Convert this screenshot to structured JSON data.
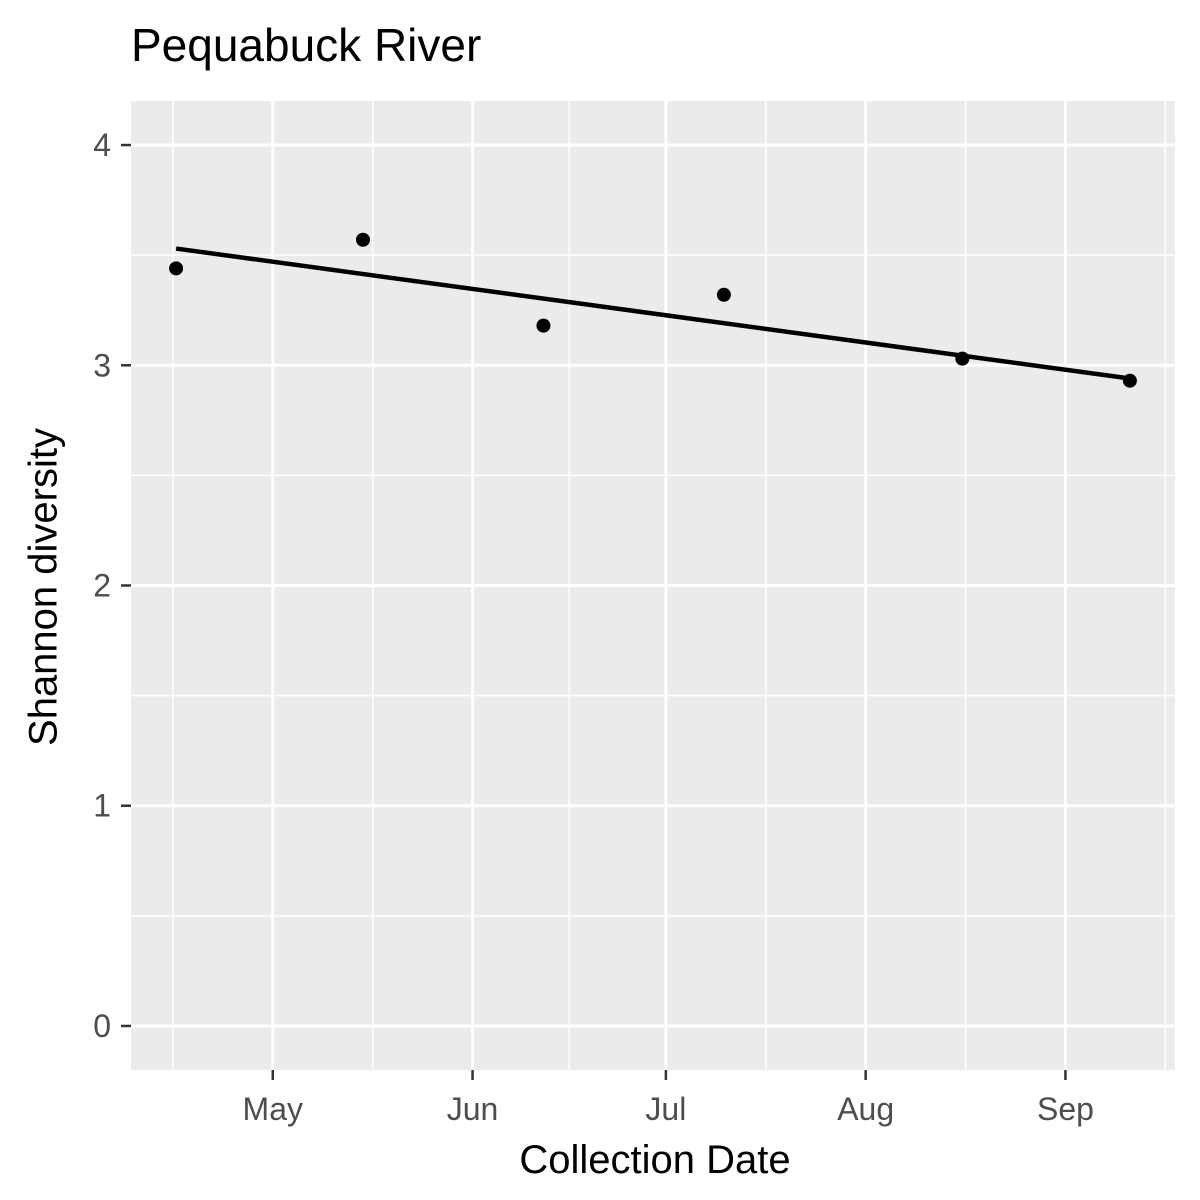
{
  "chart_data": {
    "type": "scatter",
    "title": "Pequabuck River",
    "xlabel": "Collection Date",
    "ylabel": "Shannon diversity",
    "x_is_date": true,
    "xlim": [
      "2018-04-09",
      "2018-09-18"
    ],
    "ylim": [
      -0.2,
      4.2
    ],
    "x_ticks": [
      {
        "date": "2018-05-01",
        "label": "May"
      },
      {
        "date": "2018-06-01",
        "label": "Jun"
      },
      {
        "date": "2018-07-01",
        "label": "Jul"
      },
      {
        "date": "2018-08-01",
        "label": "Aug"
      },
      {
        "date": "2018-09-01",
        "label": "Sep"
      }
    ],
    "y_ticks": [
      0,
      1,
      2,
      3,
      4
    ],
    "points": [
      {
        "x": "2018-04-16",
        "y": 3.44
      },
      {
        "x": "2018-05-15",
        "y": 3.57
      },
      {
        "x": "2018-06-12",
        "y": 3.18
      },
      {
        "x": "2018-07-10",
        "y": 3.32
      },
      {
        "x": "2018-08-16",
        "y": 3.03
      },
      {
        "x": "2018-09-11",
        "y": 2.93
      }
    ],
    "trend_line": {
      "x": [
        "2018-04-16",
        "2018-09-11"
      ],
      "y": [
        3.53,
        2.94
      ]
    },
    "grid": true,
    "legend": "none",
    "colors": {
      "panel": "#ebebeb",
      "grid": "#ffffff",
      "points": "#000000",
      "line": "#000000",
      "tick_text": "#4d4d4d"
    }
  }
}
